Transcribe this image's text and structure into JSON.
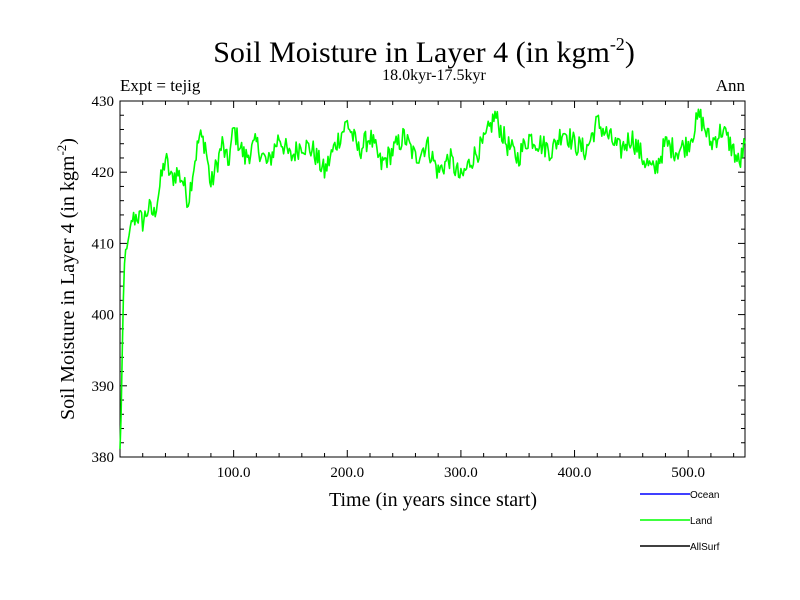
{
  "chart_data": {
    "type": "line",
    "title": "Soil Moisture in Layer 4 (in kgm",
    "title_sup": "-2",
    "title_close": ")",
    "subtitle_left": "Expt = tejig",
    "subtitle_center": "18.0kyr-17.5kyr",
    "subtitle_right": "Ann",
    "xlabel": "Time (in years since start)",
    "ylabel": "Soil Moisture in Layer 4 (in kgm",
    "ylabel_sup": "-2",
    "ylabel_close": ")",
    "xlim": [
      0,
      550
    ],
    "ylim": [
      380,
      430
    ],
    "xticks": [
      100,
      200,
      300,
      400,
      500
    ],
    "xtick_labels": [
      "100.0",
      "200.0",
      "300.0",
      "400.0",
      "500.0"
    ],
    "yticks": [
      380,
      390,
      400,
      410,
      420,
      430
    ],
    "ytick_labels": [
      "380",
      "390",
      "400",
      "410",
      "420",
      "430"
    ],
    "legend": [
      {
        "name": "Ocean",
        "color": "#0000ff"
      },
      {
        "name": "Land",
        "color": "#00ff00"
      },
      {
        "name": "AllSurf",
        "color": "#000000"
      }
    ],
    "series": [
      {
        "name": "Land",
        "color": "#00ff00",
        "x": [
          0,
          1,
          2,
          3,
          4,
          5,
          7,
          10,
          15,
          20,
          25,
          30,
          35,
          40,
          45,
          50,
          55,
          60,
          65,
          70,
          75,
          80,
          85,
          90,
          95,
          100,
          110,
          120,
          130,
          140,
          150,
          160,
          170,
          180,
          190,
          200,
          210,
          220,
          230,
          240,
          250,
          260,
          270,
          280,
          290,
          300,
          310,
          320,
          330,
          340,
          350,
          360,
          370,
          380,
          390,
          400,
          410,
          420,
          430,
          440,
          450,
          460,
          470,
          480,
          490,
          500,
          510,
          520,
          530,
          540,
          545,
          550
        ],
        "values": [
          381,
          386,
          395,
          402,
          407,
          409,
          410,
          413,
          414,
          413,
          415,
          414,
          418,
          422,
          419,
          420,
          419,
          416,
          421,
          425,
          424,
          418,
          421,
          424,
          421,
          426,
          422,
          424,
          421,
          425,
          422,
          424,
          423,
          420,
          424,
          427,
          423,
          425,
          421,
          423,
          425,
          422,
          424,
          420,
          422,
          419,
          422,
          424,
          428,
          424,
          422,
          425,
          424,
          423,
          426,
          424,
          423,
          427,
          425,
          423,
          425,
          422,
          420,
          424,
          423,
          424,
          428,
          424,
          426,
          423,
          421,
          424
        ]
      }
    ]
  }
}
